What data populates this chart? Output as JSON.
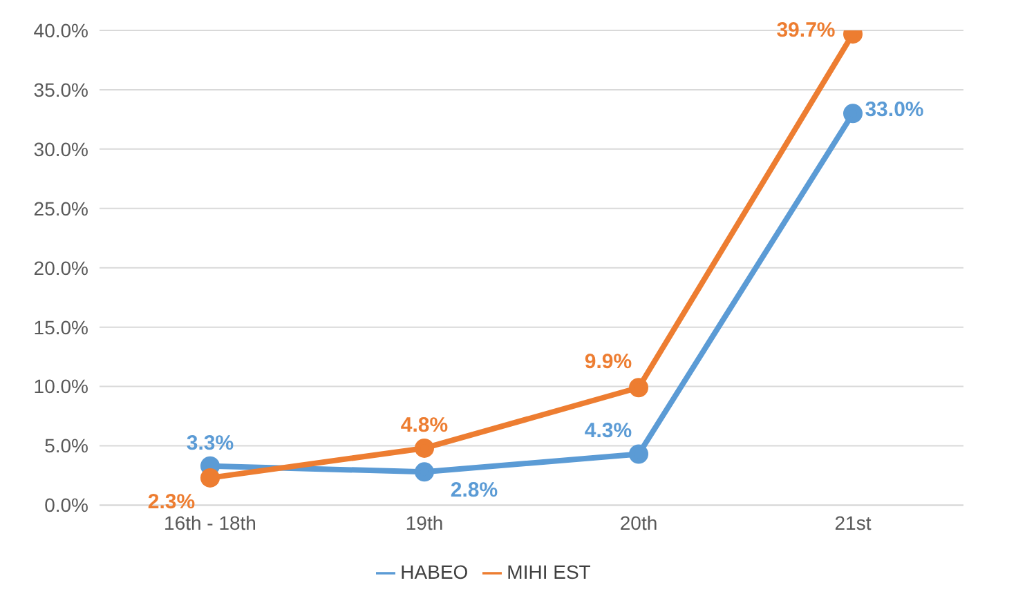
{
  "chart_data": {
    "type": "line",
    "categories": [
      "16th - 18th",
      "19th",
      "20th",
      "21st"
    ],
    "series": [
      {
        "name": "HABEO",
        "color": "#5b9bd5",
        "values": [
          3.3,
          2.8,
          4.3,
          33.0
        ],
        "value_labels": [
          "3.3%",
          "2.8%",
          "4.3%",
          "33.0%"
        ]
      },
      {
        "name": "MIHI EST",
        "color": "#ed7d31",
        "values": [
          2.3,
          4.8,
          9.9,
          39.7
        ],
        "value_labels": [
          "2.3%",
          "4.8%",
          "9.9%",
          "39.7%"
        ]
      }
    ],
    "ylim": [
      0,
      40
    ],
    "yticks": [
      {
        "value": 0,
        "label": "0.0%"
      },
      {
        "value": 5,
        "label": "5.0%"
      },
      {
        "value": 10,
        "label": "10.0%"
      },
      {
        "value": 15,
        "label": "15.0%"
      },
      {
        "value": 20,
        "label": "20.0%"
      },
      {
        "value": 25,
        "label": "25.0%"
      },
      {
        "value": 30,
        "label": "30.0%"
      },
      {
        "value": 35,
        "label": "35.0%"
      },
      {
        "value": 40,
        "label": "40.0%"
      }
    ],
    "grid": "y",
    "legend": "bottom",
    "marker": "circle",
    "line_style": "solid"
  }
}
